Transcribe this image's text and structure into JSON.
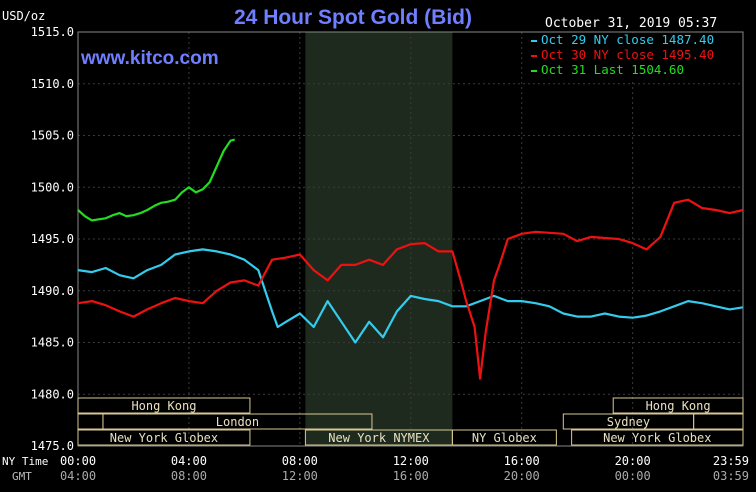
{
  "header": {
    "unit": "USD/oz",
    "title": "24 Hour Spot Gold (Bid)",
    "timestamp": "October 31, 2019 05:37",
    "website": "www.kitco.com"
  },
  "legend": [
    {
      "label": "Oct 29 NY close 1487.40",
      "color": "#33ccee"
    },
    {
      "label": "Oct 30 NY close 1495.40",
      "color": "#ee1111"
    },
    {
      "label": "Oct 31 Last 1504.60",
      "color": "#22dd22"
    }
  ],
  "axis": {
    "ny_time_label": "NY Time",
    "gmt_label": "GMT",
    "ny_ticks": [
      "00:00",
      "04:00",
      "08:00",
      "12:00",
      "16:00",
      "20:00",
      "23:59"
    ],
    "gmt_ticks": [
      "04:00",
      "08:00",
      "12:00",
      "16:00",
      "20:00",
      "00:00",
      "03:59"
    ]
  },
  "sessions": [
    {
      "label": "Hong Kong",
      "row": 0,
      "start": 0,
      "end": 6.2
    },
    {
      "label": "Hong Kong",
      "row": 0,
      "start": 19.3,
      "end": 23.98
    },
    {
      "label": "",
      "row": 1,
      "start": 0,
      "end": 0.9
    },
    {
      "label": "London",
      "row": 1,
      "start": 0.9,
      "end": 10.6
    },
    {
      "label": "Sydney",
      "row": 1,
      "start": 17.5,
      "end": 22.2
    },
    {
      "label": "",
      "row": 1,
      "start": 22.2,
      "end": 23.98
    },
    {
      "label": "New York Globex",
      "row": 2,
      "start": 0,
      "end": 6.2
    },
    {
      "label": "New York NYMEX",
      "row": 2,
      "start": 8.2,
      "end": 13.5
    },
    {
      "label": "NY Globex",
      "row": 2,
      "start": 13.5,
      "end": 17.25
    },
    {
      "label": "New York Globex",
      "row": 2,
      "start": 17.8,
      "end": 23.98
    }
  ],
  "chart_data": {
    "type": "line",
    "title": "24 Hour Spot Gold (Bid)",
    "ylabel": "USD/oz",
    "xlabel": "NY Time / GMT",
    "ylim": [
      1475,
      1515
    ],
    "xlim": [
      0,
      23.98
    ],
    "yticks": [
      "1515.0",
      "1510.0",
      "1505.0",
      "1500.0",
      "1495.0",
      "1490.0",
      "1485.0",
      "1480.0",
      "1475.0"
    ],
    "shaded_x_range": [
      8.2,
      13.5
    ],
    "grid": true,
    "legend_position": "top-right",
    "series": [
      {
        "name": "Oct 29 NY close 1487.40",
        "color": "#33ccee",
        "x": [
          0,
          0.5,
          1,
          1.5,
          2,
          2.5,
          3,
          3.5,
          4,
          4.5,
          5,
          5.5,
          6,
          6.5,
          7,
          7.2,
          7.5,
          8,
          8.5,
          9,
          9.5,
          10,
          10.5,
          11,
          11.5,
          12,
          12.5,
          13,
          13.5,
          14,
          14.5,
          15,
          15.5,
          16,
          16.5,
          17,
          17.5,
          18,
          18.5,
          19,
          19.5,
          20,
          20.5,
          21,
          21.5,
          22,
          22.5,
          23,
          23.5,
          23.98
        ],
        "y": [
          1492.0,
          1491.8,
          1492.2,
          1491.5,
          1491.2,
          1492.0,
          1492.5,
          1493.5,
          1493.8,
          1494.0,
          1493.8,
          1493.5,
          1493.0,
          1492.0,
          1488.0,
          1486.5,
          1487.0,
          1487.8,
          1486.5,
          1489.0,
          1487.0,
          1485.0,
          1487.0,
          1485.5,
          1488.0,
          1489.5,
          1489.2,
          1489.0,
          1488.5,
          1488.5,
          1489.0,
          1489.5,
          1489.0,
          1489.0,
          1488.8,
          1488.5,
          1487.8,
          1487.5,
          1487.5,
          1487.8,
          1487.5,
          1487.4,
          1487.6,
          1488.0,
          1488.5,
          1489.0,
          1488.8,
          1488.5,
          1488.2,
          1488.4
        ]
      },
      {
        "name": "Oct 30 NY close 1495.40",
        "color": "#ee1111",
        "x": [
          0,
          0.5,
          1,
          1.5,
          2,
          2.5,
          3,
          3.5,
          4,
          4.5,
          5,
          5.5,
          6,
          6.5,
          7,
          7.5,
          8,
          8.5,
          9,
          9.5,
          10,
          10.5,
          11,
          11.5,
          12,
          12.5,
          13,
          13.5,
          13.8,
          14,
          14.3,
          14.5,
          14.7,
          15,
          15.2,
          15.5,
          16,
          16.5,
          17,
          17.5,
          18,
          18.5,
          19,
          19.5,
          20,
          20.5,
          21,
          21.5,
          22,
          22.5,
          23,
          23.5,
          23.98
        ],
        "y": [
          1488.8,
          1489.0,
          1488.6,
          1488.0,
          1487.5,
          1488.2,
          1488.8,
          1489.3,
          1489.0,
          1488.8,
          1490.0,
          1490.8,
          1491.0,
          1490.5,
          1493.0,
          1493.2,
          1493.5,
          1492.0,
          1491.0,
          1492.5,
          1492.5,
          1493.0,
          1492.5,
          1494.0,
          1494.5,
          1494.6,
          1493.8,
          1493.8,
          1491.0,
          1489.0,
          1486.5,
          1481.5,
          1486.0,
          1491.0,
          1492.5,
          1495.0,
          1495.5,
          1495.7,
          1495.6,
          1495.5,
          1494.8,
          1495.2,
          1495.1,
          1495.0,
          1494.6,
          1494.0,
          1495.2,
          1498.5,
          1498.8,
          1498.0,
          1497.8,
          1497.5,
          1497.8
        ]
      },
      {
        "name": "Oct 31 Last 1504.60",
        "color": "#22dd22",
        "x": [
          0,
          0.25,
          0.5,
          0.75,
          1,
          1.25,
          1.5,
          1.75,
          2,
          2.25,
          2.5,
          2.75,
          3,
          3.25,
          3.5,
          3.75,
          4,
          4.25,
          4.5,
          4.75,
          5,
          5.25,
          5.5,
          5.65
        ],
        "y": [
          1497.8,
          1497.2,
          1496.8,
          1496.9,
          1497.0,
          1497.3,
          1497.5,
          1497.2,
          1497.3,
          1497.5,
          1497.8,
          1498.2,
          1498.5,
          1498.6,
          1498.8,
          1499.5,
          1500.0,
          1499.5,
          1499.8,
          1500.5,
          1502.0,
          1503.5,
          1504.5,
          1504.6
        ]
      }
    ]
  }
}
